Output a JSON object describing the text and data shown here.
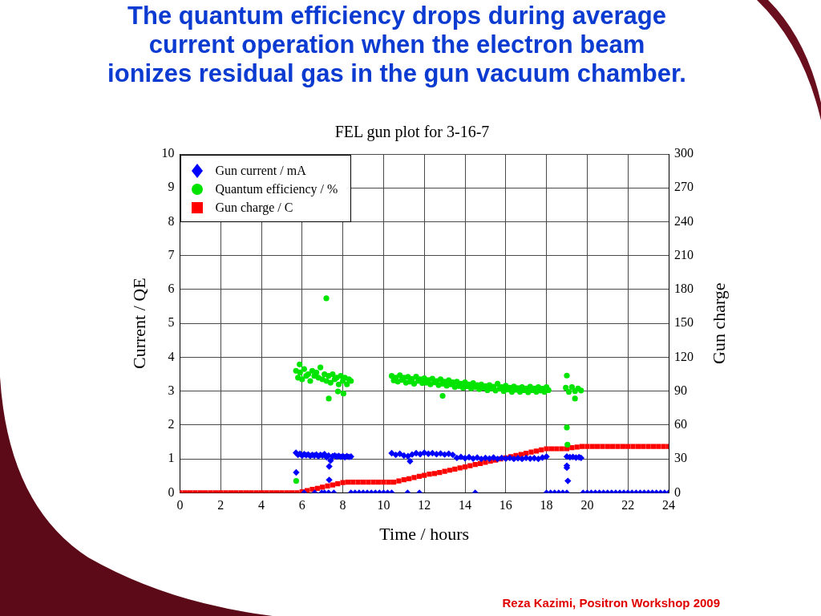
{
  "chart_data": {
    "type": "scatter",
    "title": "The quantum efficiency drops during average current operation when the electron beam ionizes residual gas in the gun vacuum chamber.",
    "subtitle": "FEL gun plot for 3-16-7",
    "xlabel": "Time / hours",
    "ylabel": "Current / QE",
    "y2label": "Gun charge",
    "annotations": [
      "Reza Kazimi, Positron Workshop 2009"
    ],
    "xlim": [
      0,
      24
    ],
    "xticks": [
      0,
      2,
      4,
      6,
      8,
      10,
      12,
      14,
      16,
      18,
      20,
      22,
      24
    ],
    "ylim": [
      0,
      10
    ],
    "yticks": [
      0,
      1,
      2,
      3,
      4,
      5,
      6,
      7,
      8,
      9,
      10
    ],
    "y2lim": [
      0,
      300
    ],
    "y2ticks": [
      0,
      30,
      60,
      90,
      120,
      150,
      180,
      210,
      240,
      270,
      300
    ],
    "grid": true,
    "legend": "top left",
    "series": [
      {
        "name": "Gun current / mA",
        "color": "#0000ff",
        "marker": "diamond",
        "x": [
          5.7,
          5.8,
          5.9,
          6.0,
          6.1,
          6.2,
          6.3,
          6.4,
          6.5,
          6.6,
          6.7,
          6.8,
          6.9,
          7.0,
          7.1,
          7.2,
          7.3,
          7.4,
          7.5,
          7.6,
          7.7,
          7.8,
          7.9,
          8.0,
          8.1,
          8.2,
          8.3,
          8.4,
          5.71,
          7.33,
          7.33,
          6.1,
          6.62,
          6.96,
          7.1,
          7.3,
          7.56,
          8.4,
          8.6,
          8.8,
          9.0,
          9.2,
          9.4,
          9.6,
          9.8,
          10.0,
          10.2,
          10.4,
          11.18,
          11.76,
          14.5,
          10.4,
          10.6,
          10.8,
          11.0,
          11.2,
          11.4,
          11.6,
          11.8,
          12.0,
          12.2,
          12.4,
          12.6,
          12.8,
          13.0,
          13.2,
          13.4,
          13.6,
          13.8,
          14.0,
          14.2,
          14.4,
          14.6,
          14.8,
          15.0,
          15.2,
          15.4,
          15.6,
          15.8,
          16.0,
          16.2,
          16.4,
          16.6,
          16.8,
          17.0,
          17.2,
          17.4,
          17.6,
          17.8,
          18.0,
          11.3,
          18.0,
          18.2,
          18.4,
          18.6,
          18.8,
          19.0,
          19.0,
          19.0,
          19.05,
          19.0,
          19.15,
          19.3,
          19.45,
          19.6,
          19.7,
          19.8,
          20.0,
          20.2,
          20.4,
          20.6,
          20.8,
          21.0,
          21.2,
          21.4,
          21.6,
          21.8,
          22.0,
          22.2,
          22.4,
          22.6,
          22.8,
          23.0,
          23.2,
          23.4,
          23.6,
          23.8,
          24.0
        ],
        "values": [
          1.18,
          1.12,
          1.15,
          1.1,
          1.14,
          1.11,
          1.13,
          1.09,
          1.12,
          1.1,
          1.13,
          1.08,
          1.12,
          1.1,
          1.14,
          1.05,
          1.1,
          0.95,
          1.08,
          1.1,
          1.07,
          1.09,
          1.06,
          1.08,
          1.05,
          1.08,
          1.06,
          1.07,
          0.6,
          0.78,
          0.38,
          0,
          0,
          0,
          0,
          0,
          0,
          0,
          0,
          0,
          0,
          0,
          0,
          0,
          0,
          0,
          0,
          0,
          0,
          0,
          0,
          1.17,
          1.12,
          1.15,
          1.1,
          1.08,
          1.13,
          1.17,
          1.14,
          1.18,
          1.15,
          1.17,
          1.14,
          1.16,
          1.13,
          1.15,
          1.12,
          1.03,
          1.06,
          1.02,
          1.05,
          1.01,
          1.04,
          1.0,
          1.03,
          1.01,
          1.04,
          1.0,
          1.03,
          1.01,
          1.03,
          1.0,
          1.02,
          1.0,
          1.03,
          1.01,
          1.02,
          1.0,
          1.04,
          1.07,
          0.93,
          0,
          0,
          0,
          0,
          0,
          0,
          0.8,
          0.74,
          0.35,
          1.07,
          1.05,
          1.06,
          1.04,
          1.05,
          1.03,
          0,
          0,
          0,
          0,
          0,
          0,
          0,
          0,
          0,
          0,
          0,
          0,
          0,
          0,
          0,
          0,
          0,
          0,
          0,
          0,
          0,
          0
        ]
      },
      {
        "name": "Quantum efficiency / %",
        "color": "#00e400",
        "marker": "circle",
        "x": [
          5.7,
          5.8,
          5.9,
          6.0,
          6.1,
          6.2,
          6.3,
          6.4,
          6.5,
          6.6,
          6.7,
          6.8,
          6.9,
          7.0,
          7.1,
          7.2,
          7.3,
          7.4,
          7.5,
          7.6,
          7.7,
          7.8,
          7.9,
          8.0,
          8.1,
          8.2,
          8.3,
          8.4,
          5.71,
          5.88,
          7.19,
          7.31,
          7.76,
          8.03,
          10.4,
          10.5,
          10.6,
          10.7,
          10.8,
          10.9,
          11.0,
          11.1,
          11.2,
          11.3,
          11.4,
          11.5,
          11.6,
          11.7,
          11.8,
          11.9,
          12.0,
          12.1,
          12.2,
          12.3,
          12.4,
          12.5,
          12.6,
          12.7,
          12.8,
          12.9,
          13.0,
          13.1,
          13.2,
          13.3,
          13.4,
          13.5,
          13.6,
          13.7,
          13.8,
          13.9,
          14.0,
          14.1,
          14.2,
          14.3,
          14.4,
          14.5,
          14.6,
          14.7,
          14.8,
          14.9,
          15.0,
          15.1,
          15.2,
          15.3,
          15.4,
          15.5,
          15.6,
          15.7,
          15.8,
          15.9,
          16.0,
          16.1,
          16.2,
          16.3,
          16.4,
          16.5,
          16.6,
          16.7,
          16.8,
          16.9,
          17.0,
          17.1,
          17.2,
          17.3,
          17.4,
          17.5,
          17.6,
          17.7,
          17.8,
          17.9,
          18.0,
          18.1,
          12.9,
          18.95,
          19.1,
          19.25,
          19.4,
          19.55,
          19.7,
          19.0,
          19.0,
          19.03,
          19.4
        ],
        "values": [
          3.6,
          3.4,
          3.55,
          3.35,
          3.65,
          3.45,
          3.5,
          3.3,
          3.6,
          3.45,
          3.55,
          3.4,
          3.7,
          3.35,
          3.5,
          3.3,
          3.45,
          3.25,
          3.5,
          3.35,
          3.4,
          3.2,
          3.45,
          3.3,
          3.4,
          3.2,
          3.35,
          3.3,
          0.35,
          3.79,
          5.74,
          2.78,
          2.99,
          2.93,
          3.45,
          3.32,
          3.4,
          3.28,
          3.47,
          3.33,
          3.4,
          3.25,
          3.42,
          3.28,
          3.36,
          3.22,
          3.43,
          3.3,
          3.35,
          3.24,
          3.38,
          3.25,
          3.33,
          3.2,
          3.37,
          3.26,
          3.3,
          3.18,
          3.35,
          3.22,
          3.28,
          3.16,
          3.32,
          3.2,
          3.26,
          3.12,
          3.28,
          3.15,
          3.22,
          3.1,
          3.26,
          3.14,
          3.2,
          3.08,
          3.24,
          3.12,
          3.18,
          3.06,
          3.2,
          3.1,
          3.15,
          3.03,
          3.18,
          3.08,
          3.13,
          3.02,
          3.22,
          3.07,
          3.12,
          3.0,
          3.16,
          3.05,
          3.1,
          2.98,
          3.14,
          3.04,
          3.09,
          2.98,
          3.12,
          3.03,
          3.08,
          2.97,
          3.13,
          3.03,
          3.08,
          2.98,
          3.12,
          3.02,
          3.07,
          2.98,
          3.12,
          3.03,
          2.86,
          3.1,
          2.98,
          3.12,
          3.0,
          3.08,
          3.02,
          3.46,
          1.93,
          1.42,
          2.78
        ]
      },
      {
        "name": "Gun charge / C",
        "color": "#ff0000",
        "marker": "square",
        "axis": "y2",
        "x": [
          0,
          0.25,
          0.5,
          0.75,
          1,
          1.25,
          1.5,
          1.75,
          2,
          2.25,
          2.5,
          2.75,
          3,
          3.25,
          3.5,
          3.75,
          4,
          4.25,
          4.5,
          4.75,
          5,
          5.25,
          5.5,
          5.75,
          6,
          6.25,
          6.5,
          6.75,
          7,
          7.25,
          7.5,
          7.75,
          8,
          8.25,
          8.5,
          8.75,
          9,
          9.25,
          9.5,
          9.75,
          10,
          10.25,
          10.5,
          10.75,
          11,
          11.25,
          11.5,
          11.75,
          12,
          12.25,
          12.5,
          12.75,
          13,
          13.25,
          13.5,
          13.75,
          14,
          14.25,
          14.5,
          14.75,
          15,
          15.25,
          15.5,
          15.75,
          16,
          16.25,
          16.5,
          16.75,
          17,
          17.25,
          17.5,
          17.75,
          18,
          18.25,
          18.5,
          18.75,
          19,
          19.25,
          19.5,
          19.75,
          20,
          20.25,
          20.5,
          20.75,
          21,
          21.25,
          21.5,
          21.75,
          22,
          22.25,
          22.5,
          22.75,
          23,
          23.25,
          23.5,
          23.75,
          24
        ],
        "values": [
          0,
          0,
          0,
          0,
          0,
          0,
          0,
          0,
          0,
          0,
          0,
          0,
          0,
          0,
          0,
          0,
          0,
          0,
          0,
          0,
          0,
          0,
          0,
          0,
          1,
          2,
          3,
          4,
          5,
          6,
          7,
          8,
          9,
          9.5,
          9.5,
          9.5,
          9.5,
          9.5,
          9.5,
          9.5,
          9.5,
          9.5,
          9.5,
          10.5,
          11.5,
          12.5,
          13.5,
          14.5,
          15.5,
          16.5,
          17,
          18,
          19,
          20,
          21,
          22,
          23,
          24,
          25,
          26,
          27,
          28,
          29,
          30,
          31,
          32,
          33,
          34,
          35,
          36,
          37,
          38,
          39,
          39,
          39,
          39,
          39,
          40,
          40.5,
          41,
          41,
          41,
          41,
          41,
          41,
          41,
          41,
          41,
          41,
          41,
          41,
          41,
          41,
          41,
          41,
          41,
          41
        ]
      }
    ]
  }
}
